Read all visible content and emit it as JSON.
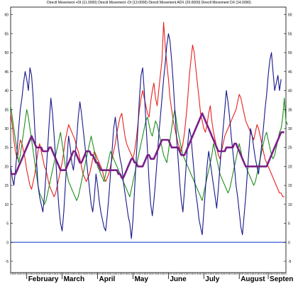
{
  "chart_data": {
    "type": "line",
    "title": "Directl Movement +DI (11.0000) Directl Movement -DI (13.0000) Directl Movement ADX (20.0000) Directl Movement DX (14.0000)",
    "xlabel": "",
    "ylabel": "",
    "ylim": [
      -8,
      62
    ],
    "yticks": [
      -5,
      0,
      5,
      10,
      15,
      20,
      25,
      30,
      35,
      40,
      45,
      50,
      55,
      60
    ],
    "x_tick_labels": [
      "February",
      "March",
      "April",
      "May",
      "June",
      "July",
      "August",
      "Septen"
    ],
    "x_tick_positions": [
      10,
      32,
      54,
      76,
      98,
      120,
      142,
      160
    ],
    "xlim": [
      0,
      171
    ],
    "grid": false,
    "reference_line": {
      "value": 0,
      "color": "#3b5bdb"
    },
    "series": [
      {
        "color": "#e8201e",
        "values": [
          34,
          31,
          27,
          24,
          22,
          24,
          27,
          26,
          24,
          22,
          19,
          17,
          15,
          14,
          16,
          18,
          21,
          24,
          26,
          24,
          22,
          20,
          19,
          17,
          15,
          14,
          13,
          12,
          13,
          15,
          17,
          19,
          21,
          24,
          27,
          29,
          31,
          30,
          29,
          28,
          27,
          25,
          24,
          22,
          20,
          18,
          17,
          16,
          17,
          18,
          20,
          22,
          24,
          23,
          22,
          21,
          20,
          19,
          17,
          16,
          17,
          18,
          20,
          22,
          24,
          26,
          29,
          31,
          33,
          34,
          31,
          28,
          26,
          25,
          24,
          23,
          22,
          24,
          27,
          31,
          35,
          38,
          40,
          38,
          36,
          34,
          33,
          37,
          40,
          42,
          38,
          36,
          40,
          44,
          48,
          58,
          52,
          47,
          43,
          38,
          35,
          32,
          30,
          28,
          26,
          25,
          24,
          26,
          29,
          33,
          38,
          44,
          48,
          52,
          50,
          46,
          42,
          38,
          34,
          32,
          30,
          29,
          31,
          34,
          36,
          32,
          29,
          27,
          25,
          23,
          22,
          24,
          26,
          28,
          29,
          30,
          31,
          32,
          33,
          34,
          35,
          37,
          39,
          38,
          36,
          34,
          32,
          31,
          30,
          29,
          28,
          27,
          29,
          31,
          30,
          28,
          26,
          24,
          22,
          21,
          20,
          19,
          18,
          17,
          16,
          15,
          14,
          13,
          13,
          12,
          12
        ]
      },
      {
        "color": "#1e8f1e",
        "values": [
          36,
          33,
          30,
          27,
          24,
          21,
          23,
          26,
          29,
          32,
          35,
          33,
          30,
          27,
          24,
          21,
          18,
          15,
          13,
          12,
          11,
          10,
          11,
          13,
          15,
          17,
          19,
          21,
          23,
          25,
          27,
          29,
          26,
          23,
          20,
          18,
          16,
          15,
          14,
          13,
          12,
          11,
          12,
          14,
          16,
          18,
          20,
          22,
          24,
          26,
          28,
          26,
          24,
          22,
          20,
          19,
          18,
          17,
          16,
          18,
          20,
          22,
          24,
          23,
          22,
          21,
          20,
          19,
          18,
          17,
          16,
          15,
          14,
          13,
          12,
          14,
          16,
          18,
          20,
          22,
          24,
          26,
          28,
          30,
          32,
          33,
          31,
          29,
          28,
          30,
          32,
          31,
          29,
          27,
          25,
          23,
          22,
          21,
          24,
          27,
          30,
          33,
          35,
          32,
          29,
          27,
          25,
          23,
          22,
          21,
          20,
          19,
          18,
          17,
          16,
          15,
          14,
          13,
          12,
          11,
          13,
          15,
          17,
          19,
          21,
          23,
          26,
          24,
          22,
          20,
          18,
          17,
          16,
          15,
          14,
          13,
          14,
          16,
          18,
          20,
          22,
          24,
          26,
          24,
          22,
          21,
          20,
          19,
          18,
          17,
          16,
          15,
          16,
          18,
          20,
          22,
          24,
          26,
          28,
          29,
          27,
          25,
          23,
          22,
          23,
          25,
          27,
          29,
          30,
          33,
          38,
          32,
          31
        ]
      },
      {
        "color": "#16168a",
        "values": [
          20,
          17,
          15,
          19,
          24,
          30,
          35,
          38,
          42,
          45,
          43,
          40,
          46,
          44,
          38,
          30,
          22,
          15,
          12,
          10,
          8,
          12,
          18,
          25,
          32,
          38,
          34,
          28,
          22,
          15,
          9,
          5,
          3,
          8,
          15,
          22,
          28,
          25,
          21,
          19,
          23,
          27,
          33,
          37,
          34,
          30,
          26,
          22,
          18,
          14,
          10,
          8,
          12,
          18,
          15,
          11,
          8,
          6,
          4,
          3,
          7,
          12,
          18,
          24,
          30,
          33,
          29,
          25,
          22,
          20,
          16,
          13,
          10,
          7,
          5,
          1,
          6,
          14,
          22,
          30,
          38,
          44,
          46,
          40,
          32,
          24,
          16,
          10,
          7,
          11,
          16,
          22,
          28,
          33,
          38,
          43,
          47,
          52,
          55,
          53,
          48,
          42,
          35,
          28,
          22,
          16,
          11,
          8,
          14,
          20,
          26,
          30,
          28,
          23,
          18,
          13,
          10,
          6,
          4,
          2,
          8,
          14,
          20,
          24,
          21,
          18,
          15,
          12,
          9,
          14,
          20,
          25,
          30,
          35,
          40,
          37,
          33,
          28,
          24,
          20,
          15,
          12,
          8,
          4,
          2,
          7,
          12,
          18,
          24,
          30,
          28,
          25,
          22,
          20,
          18,
          22,
          26,
          30,
          35,
          39,
          44,
          48,
          50,
          45,
          40,
          42,
          44,
          40,
          43
        ]
      },
      {
        "color": "#7a1f86",
        "values": [
          18,
          18,
          18,
          18,
          19,
          20,
          21,
          22,
          23,
          24,
          25,
          26,
          27,
          28,
          27,
          26,
          25,
          25,
          25,
          25,
          24,
          24,
          24,
          24,
          25,
          25,
          24,
          23,
          22,
          21,
          20,
          19,
          19,
          19,
          19,
          20,
          21,
          22,
          23,
          24,
          24,
          23,
          22,
          21,
          21,
          22,
          23,
          24,
          24,
          24,
          23,
          23,
          22,
          21,
          21,
          20,
          19,
          19,
          19,
          19,
          19,
          19,
          19,
          19,
          19,
          19,
          19,
          18,
          18,
          17,
          17,
          18,
          19,
          20,
          21,
          22,
          22,
          21,
          21,
          20,
          20,
          20,
          20,
          21,
          22,
          23,
          23,
          22,
          22,
          22,
          23,
          24,
          25,
          26,
          27,
          27,
          27,
          27,
          27,
          26,
          25,
          25,
          25,
          25,
          25,
          24,
          23,
          23,
          23,
          24,
          25,
          26,
          27,
          28,
          29,
          30,
          31,
          32,
          33,
          34,
          33,
          32,
          31,
          30,
          29,
          28,
          27,
          26,
          25,
          24,
          24,
          24,
          24,
          24,
          25,
          25,
          25,
          25,
          25,
          26,
          26,
          25,
          24,
          23,
          22,
          21,
          20,
          20,
          20,
          20,
          20,
          20,
          20,
          20,
          20,
          20,
          20,
          20,
          20,
          20,
          21,
          22,
          23,
          24,
          25,
          26,
          27,
          28,
          29,
          29,
          29
        ]
      }
    ]
  }
}
